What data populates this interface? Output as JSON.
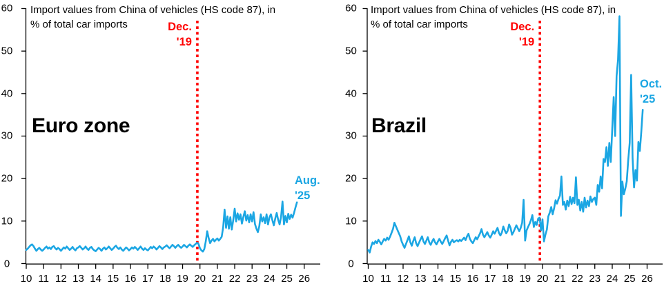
{
  "colors": {
    "series_line": "#1BA6E3",
    "event_line": "#FF0000",
    "text": "#000000",
    "background": "#FFFFFF"
  },
  "chart_data": [
    {
      "type": "line",
      "region_label": "Euro zone",
      "title_lines": [
        "Import values from China of vehicles (HS code 87), in",
        "% of total car imports"
      ],
      "x_unit": "monthly, Jan 2010 - Aug 2025",
      "ylim": [
        0,
        60
      ],
      "ytick_labels": [
        "60",
        "50",
        "40",
        "30",
        "20",
        "10",
        "0"
      ],
      "xtick_labels": [
        "10",
        "11",
        "12",
        "13",
        "14",
        "15",
        "16",
        "17",
        "18",
        "19",
        "20",
        "21",
        "22",
        "23",
        "24",
        "25",
        "26"
      ],
      "grid": false,
      "event_line": {
        "x_year": 19.85,
        "label_lines": [
          "Dec.",
          "'19"
        ]
      },
      "end_label_lines": [
        "Aug.",
        "'25"
      ],
      "values": [
        3.2,
        3.5,
        3.9,
        4.3,
        4.5,
        4.1,
        3.5,
        3.0,
        3.4,
        3.7,
        3.3,
        3.0,
        3.3,
        3.7,
        4.0,
        3.5,
        3.8,
        3.4,
        3.9,
        4.1,
        3.6,
        3.3,
        3.7,
        3.4,
        3.0,
        3.4,
        3.8,
        3.5,
        4.0,
        3.6,
        3.2,
        3.5,
        3.9,
        3.4,
        3.1,
        3.6,
        3.8,
        4.1,
        3.7,
        3.3,
        3.6,
        4.0,
        3.5,
        3.2,
        3.7,
        3.9,
        3.4,
        3.1,
        2.9,
        3.3,
        3.7,
        3.4,
        3.0,
        3.5,
        3.8,
        3.3,
        3.6,
        4.0,
        3.6,
        3.2,
        3.5,
        3.9,
        4.2,
        3.7,
        3.4,
        3.8,
        3.3,
        3.0,
        3.4,
        3.8,
        3.5,
        3.1,
        3.4,
        3.8,
        3.5,
        3.9,
        3.6,
        3.2,
        3.6,
        4.0,
        3.5,
        3.2,
        3.6,
        3.3,
        3.1,
        3.5,
        3.9,
        3.6,
        4.0,
        3.7,
        3.3,
        3.7,
        4.1,
        3.8,
        3.4,
        3.8,
        4.0,
        4.3,
        3.9,
        3.6,
        4.0,
        4.4,
        4.1,
        3.7,
        4.1,
        4.4,
        4.0,
        3.7,
        4.0,
        4.4,
        4.1,
        3.8,
        4.2,
        4.5,
        4.2,
        3.9,
        4.3,
        4.6,
        4.9,
        4.6,
        3.6,
        3.1,
        2.8,
        3.4,
        5.2,
        7.6,
        6.0,
        4.8,
        5.4,
        5.8,
        5.2,
        5.6,
        5.9,
        5.4,
        5.8,
        6.3,
        8.5,
        12.7,
        8.4,
        11.1,
        8.2,
        10.9,
        8.0,
        10.2,
        12.9,
        9.9,
        11.8,
        10.3,
        11.6,
        9.4,
        11.0,
        12.3,
        10.1,
        11.4,
        9.7,
        11.6,
        9.9,
        12.1,
        9.3,
        8.2,
        7.4,
        8.8,
        11.6,
        9.9,
        10.9,
        9.5,
        11.6,
        9.2,
        10.9,
        11.6,
        10.2,
        9.0,
        10.6,
        11.9,
        10.3,
        9.2,
        11.0,
        14.6,
        9.2,
        11.2,
        9.7,
        11.7,
        10.5,
        11.5,
        10.8,
        11.9,
        13.2,
        14.4
      ]
    },
    {
      "type": "line",
      "region_label": "Brazil",
      "title_lines": [
        "Import values from China of vehicles (HS code 87), in",
        "% of total car imports"
      ],
      "x_unit": "monthly, Jan 2010 - Oct 2025",
      "ylim": [
        0,
        60
      ],
      "ytick_labels": [
        "60",
        "50",
        "40",
        "30",
        "20",
        "10",
        "0"
      ],
      "xtick_labels": [
        "10",
        "11",
        "12",
        "13",
        "14",
        "15",
        "16",
        "17",
        "18",
        "19",
        "20",
        "21",
        "22",
        "23",
        "24",
        "25",
        "26"
      ],
      "grid": false,
      "event_line": {
        "x_year": 19.85,
        "label_lines": [
          "Dec.",
          "'19"
        ]
      },
      "end_label_lines": [
        "Oct.",
        "'25"
      ],
      "values": [
        3.2,
        2.6,
        4.0,
        5.0,
        4.6,
        5.3,
        4.8,
        5.6,
        5.1,
        4.5,
        5.2,
        5.8,
        5.4,
        6.1,
        5.6,
        6.3,
        7.2,
        8.1,
        9.6,
        8.8,
        8.0,
        7.2,
        6.4,
        5.2,
        4.4,
        3.7,
        4.6,
        5.5,
        6.4,
        5.0,
        4.2,
        5.3,
        6.2,
        4.8,
        4.1,
        4.9,
        5.7,
        6.4,
        5.2,
        4.6,
        5.4,
        6.2,
        5.0,
        4.4,
        5.2,
        5.8,
        5.0,
        4.5,
        5.2,
        5.8,
        5.1,
        4.6,
        5.3,
        6.0,
        6.6,
        5.4,
        4.3,
        5.1,
        5.6,
        5.0,
        5.3,
        5.5,
        5.2,
        5.6,
        5.3,
        5.7,
        6.1,
        5.5,
        6.4,
        7.0,
        5.8,
        5.2,
        4.8,
        5.5,
        6.2,
        5.7,
        6.4,
        7.1,
        8.1,
        6.8,
        6.2,
        6.8,
        7.4,
        6.6,
        6.1,
        6.8,
        7.6,
        7.0,
        7.7,
        8.4,
        7.2,
        6.6,
        7.3,
        8.7,
        7.8,
        7.1,
        7.7,
        9.2,
        8.4,
        6.8,
        7.4,
        8.2,
        9.0,
        8.3,
        7.6,
        8.4,
        9.6,
        15.0,
        5.4,
        7.8,
        8.6,
        9.3,
        10.2,
        11.4,
        8.6,
        9.8,
        9.1,
        10.6,
        10.8,
        7.8,
        10.4,
        5.2,
        6.8,
        8.0,
        11.1,
        12.0,
        13.3,
        11.6,
        13.0,
        14.9,
        14.1,
        15.2,
        16.0,
        20.5,
        13.8,
        14.5,
        12.7,
        14.8,
        13.5,
        15.7,
        14.0,
        15.5,
        14.2,
        20.3,
        13.8,
        15.0,
        12.5,
        14.5,
        12.2,
        15.5,
        13.2,
        14.8,
        13.5,
        15.8,
        14.5,
        15.2,
        15.5,
        13.8,
        18.5,
        16.9,
        20.5,
        17.7,
        24.6,
        23.9,
        27.4,
        23.0,
        28.4,
        23.9,
        31.6,
        39.2,
        30.0,
        44.1,
        48.0,
        58.2,
        11.2,
        19.3,
        16.3,
        17.6,
        19.3,
        24.2,
        28.4,
        44.4,
        24.8,
        17.9,
        22.0,
        19.5,
        28.6,
        26.5,
        31.0,
        36.2
      ]
    }
  ]
}
